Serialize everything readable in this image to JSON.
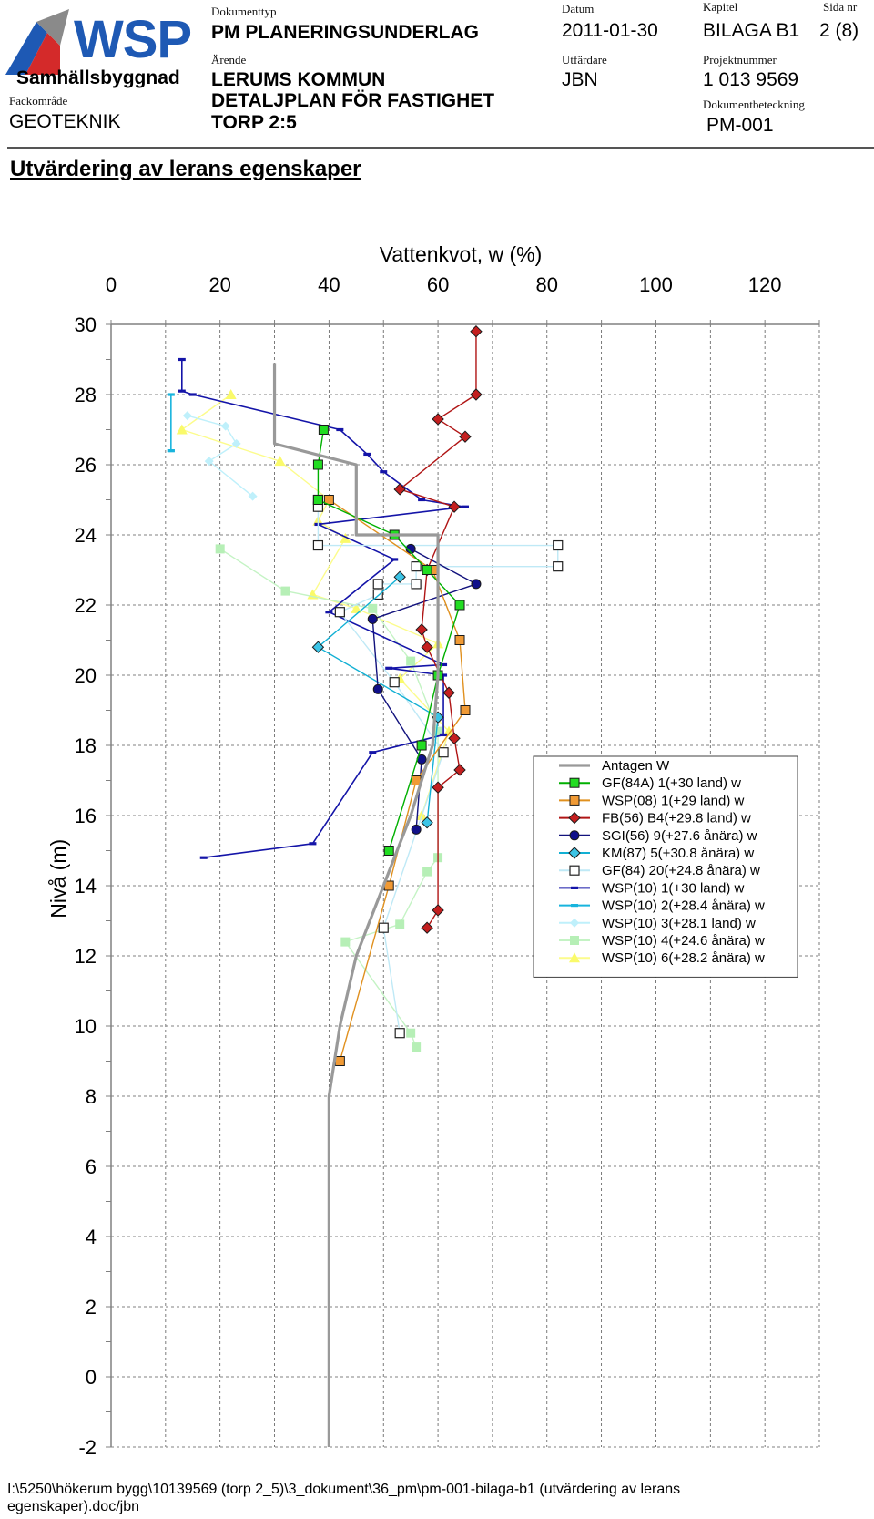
{
  "header": {
    "company": "WSP",
    "company_division": "Samhällsbyggnad",
    "fackomrade_label": "Fackområde",
    "fackomrade_value": "GEOTEKNIK",
    "dokumenttyp_label": "Dokumenttyp",
    "dokumenttyp_value": "PM PLANERINGSUNDERLAG",
    "arende_label": "Ärende",
    "arende_line1": "LERUMS KOMMUN",
    "arende_line2": "DETALJPLAN FÖR FASTIGHET",
    "arende_line3": "TORP 2:5",
    "datum_label": "Datum",
    "datum_value": "2011-01-30",
    "utfardare_label": "Utfärdare",
    "utfardare_value": "JBN",
    "kapitel_label": "Kapitel",
    "kapitel_value": "BILAGA B1",
    "sida_label": "Sida nr",
    "sida_value": "2 (8)",
    "projektnummer_label": "Projektnummer",
    "projektnummer_value": "1 013 9569",
    "dokumentbeteckning_label": "Dokumentbeteckning",
    "dokumentbeteckning_value": "PM-001",
    "brand_blue": "#1e59b4",
    "brand_red": "#d42a2a"
  },
  "page_heading": "Utvärdering av lerans egenskaper",
  "chart_data": {
    "type": "line",
    "title": "",
    "xlabel": "Vattenkvot, w (%)",
    "ylabel": "Nivå (m)",
    "xlim": [
      0,
      130
    ],
    "ylim": [
      -2,
      30
    ],
    "xticks": [
      "0",
      "20",
      "40",
      "60",
      "80",
      "100",
      "120"
    ],
    "yticks": [
      "30",
      "28",
      "26",
      "24",
      "22",
      "20",
      "18",
      "16",
      "14",
      "12",
      "10",
      "8",
      "6",
      "4",
      "2",
      "0",
      "-2"
    ],
    "x_axis_position": "top",
    "grid": true,
    "legend_position": "right",
    "series": [
      {
        "name": "Antagen W",
        "color": "#999999",
        "marker": "none",
        "width": 3.2,
        "points": [
          [
            30,
            28.9
          ],
          [
            30,
            26.6
          ],
          [
            45,
            26.0
          ],
          [
            45,
            24.0
          ],
          [
            60,
            24.0
          ],
          [
            60,
            21.6
          ],
          [
            60,
            20.0
          ],
          [
            59,
            18.0
          ],
          [
            55,
            16.0
          ],
          [
            50,
            14.0
          ],
          [
            45,
            12.0
          ],
          [
            42,
            10.0
          ],
          [
            40,
            8.0
          ],
          [
            40,
            -2.0
          ]
        ]
      },
      {
        "name": "GF(84A) 1(+30 land) w",
        "color": "#00b000",
        "fill": "#22dd22",
        "marker": "square",
        "width": 1.4,
        "points": [
          [
            39,
            27.0
          ],
          [
            38,
            26.0
          ],
          [
            38,
            25.0
          ],
          [
            52,
            24.0
          ],
          [
            58,
            23.0
          ],
          [
            64,
            22.0
          ],
          [
            60,
            20.0
          ],
          [
            57,
            18.0
          ],
          [
            51,
            15.0
          ]
        ]
      },
      {
        "name": "WSP(08) 1(+29 land) w",
        "color": "#e0901e",
        "fill": "#f09a35",
        "marker": "square",
        "width": 1.4,
        "points": [
          [
            40,
            25.0
          ],
          [
            59,
            23.0
          ],
          [
            64,
            21.0
          ],
          [
            65,
            19.0
          ],
          [
            56,
            17.0
          ],
          [
            51,
            14.0
          ],
          [
            42,
            9.0
          ]
        ]
      },
      {
        "name": "FB(56) B4(+29.8 land) w",
        "color": "#b01515",
        "fill": "#c41f1f",
        "marker": "diamond",
        "width": 1.4,
        "points": [
          [
            67,
            29.8
          ],
          [
            67,
            28.0
          ],
          [
            60,
            27.3
          ],
          [
            65,
            26.8
          ],
          [
            53,
            25.3
          ],
          [
            63,
            24.8
          ],
          [
            58,
            23.0
          ],
          [
            57,
            21.3
          ],
          [
            58,
            20.8
          ],
          [
            62,
            19.5
          ],
          [
            63,
            18.2
          ],
          [
            64,
            17.3
          ],
          [
            60,
            16.8
          ],
          [
            60,
            13.3
          ],
          [
            58,
            12.8
          ]
        ]
      },
      {
        "name": "SGI(56) 9(+27.6 ånära) w",
        "color": "#12127d",
        "fill": "#10108a",
        "marker": "circle",
        "width": 1.4,
        "points": [
          [
            55,
            23.6
          ],
          [
            67,
            22.6
          ],
          [
            48,
            21.6
          ],
          [
            49,
            19.6
          ],
          [
            57,
            17.6
          ],
          [
            56,
            15.6
          ]
        ]
      },
      {
        "name": "KM(87) 5(+30.8 ånära) w",
        "color": "#12b0d4",
        "fill": "#3cc4e6",
        "marker": "diamond",
        "width": 1.4,
        "points": [
          [
            53,
            22.8
          ],
          [
            38,
            20.8
          ],
          [
            60,
            18.8
          ],
          [
            58,
            15.8
          ]
        ]
      },
      {
        "name": "GF(84) 20(+24.8 ånära) w",
        "color": "#bfe9f6",
        "fill": "#ffffff",
        "stroke": "#222222",
        "marker": "square-open",
        "width": 1.4,
        "points": [
          [
            38,
            25.0
          ],
          [
            38,
            24.8
          ],
          [
            38,
            23.7
          ],
          [
            82,
            23.7
          ],
          [
            82,
            23.1
          ],
          [
            56,
            23.1
          ],
          [
            56,
            22.6
          ],
          [
            49,
            22.6
          ],
          [
            49,
            22.3
          ],
          [
            42,
            21.8
          ],
          [
            52,
            19.8
          ],
          [
            61,
            17.8
          ],
          [
            50,
            12.8
          ],
          [
            53,
            9.8
          ]
        ]
      },
      {
        "name": "WSP(10) 1(+30 land) w",
        "color": "#1414a8",
        "fill": "#1414a8",
        "marker": "dash",
        "width": 1.6,
        "points": [
          [
            13,
            29.0
          ],
          [
            13,
            28.1
          ],
          [
            15,
            28.0
          ],
          [
            42,
            27.0
          ],
          [
            47,
            26.3
          ],
          [
            50,
            25.8
          ],
          [
            57,
            25.0
          ],
          [
            65,
            24.8
          ],
          [
            38,
            24.3
          ],
          [
            52,
            23.3
          ],
          [
            40,
            21.8
          ],
          [
            61,
            20.3
          ],
          [
            51,
            20.2
          ],
          [
            61,
            20.0
          ],
          [
            61,
            18.3
          ],
          [
            48,
            17.8
          ],
          [
            37,
            15.2
          ],
          [
            17,
            14.8
          ]
        ]
      },
      {
        "name": "WSP(10) 2(+28.4 ånära) w",
        "color": "#18b4dd",
        "fill": "#18b4dd",
        "marker": "dash",
        "width": 1.6,
        "points": [
          [
            11,
            28.0
          ],
          [
            11,
            26.4
          ],
          [
            11,
            26.4
          ]
        ]
      },
      {
        "name": "WSP(10) 3(+28.1 land) w",
        "color": "#bff0fb",
        "fill": "#bff0fb",
        "marker": "diamond-small",
        "width": 1.4,
        "points": [
          [
            14,
            27.4
          ],
          [
            21,
            27.1
          ],
          [
            23,
            26.6
          ],
          [
            18,
            26.1
          ],
          [
            26,
            25.1
          ]
        ]
      },
      {
        "name": "WSP(10) 4(+24.6 ånära) w",
        "color": "#c4f3c4",
        "fill": "#b6efb6",
        "marker": "square-small",
        "width": 1.4,
        "points": [
          [
            20,
            23.6
          ],
          [
            32,
            22.4
          ],
          [
            48,
            21.9
          ],
          [
            55,
            20.4
          ],
          [
            60,
            18.4
          ],
          [
            60,
            14.8
          ],
          [
            58,
            14.4
          ],
          [
            53,
            12.9
          ],
          [
            43,
            12.4
          ],
          [
            55,
            9.8
          ],
          [
            56,
            9.4
          ]
        ]
      },
      {
        "name": "WSP(10) 6(+28.2 ånära) w",
        "color": "#fcfc8c",
        "fill": "#fafa6a",
        "marker": "triangle",
        "width": 1.4,
        "points": [
          [
            22,
            28.0
          ],
          [
            13,
            27.0
          ],
          [
            31,
            26.1
          ],
          [
            40,
            25.0
          ],
          [
            38,
            24.4
          ],
          [
            43,
            23.9
          ],
          [
            37,
            22.3
          ],
          [
            45,
            21.9
          ],
          [
            60,
            20.9
          ],
          [
            53,
            19.9
          ],
          [
            62,
            18.4
          ],
          [
            57,
            16.0
          ]
        ]
      }
    ]
  },
  "footer": {
    "path_line1": "I:\\5250\\hökerum bygg\\10139569 (torp 2_5)\\3_dokument\\36_pm\\pm-001-bilaga-b1 (utvärdering av lerans",
    "path_line2": "egenskaper).doc/jbn"
  }
}
